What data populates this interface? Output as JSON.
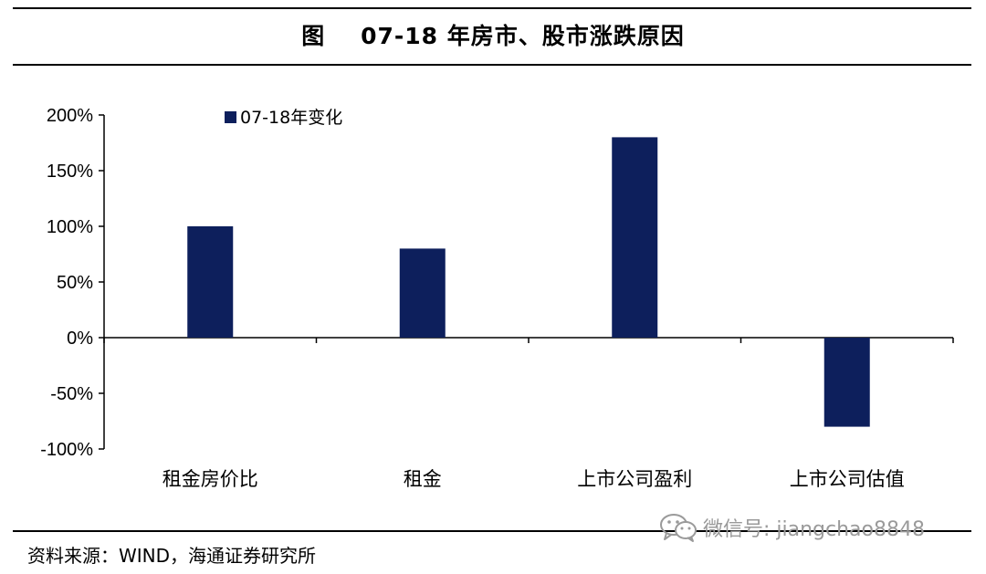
{
  "title": "图    07-18 年房市、股市涨跌原因",
  "source": "资料来源：WIND，海通证券研究所",
  "watermark": "微信号: jiangchao8848",
  "colors": {
    "bar": "#0d1f5c",
    "axis": "#000000",
    "watermark": "#9a9a9a"
  },
  "chart_data": {
    "type": "bar",
    "categories": [
      "租金房价比",
      "租金",
      "上市公司盈利",
      "上市公司估值"
    ],
    "series": [
      {
        "name": "07-18年变化",
        "values": [
          100,
          80,
          180,
          -80
        ]
      }
    ],
    "ylim": [
      -100,
      200
    ],
    "yticks": [
      200,
      150,
      100,
      50,
      0,
      -50,
      -100
    ],
    "ytick_labels": [
      "200%",
      "150%",
      "100%",
      "50%",
      "0%",
      "-50%",
      "-100%"
    ],
    "title": "",
    "xlabel": "",
    "ylabel": "",
    "grid": false,
    "legend_position": "top-left"
  }
}
